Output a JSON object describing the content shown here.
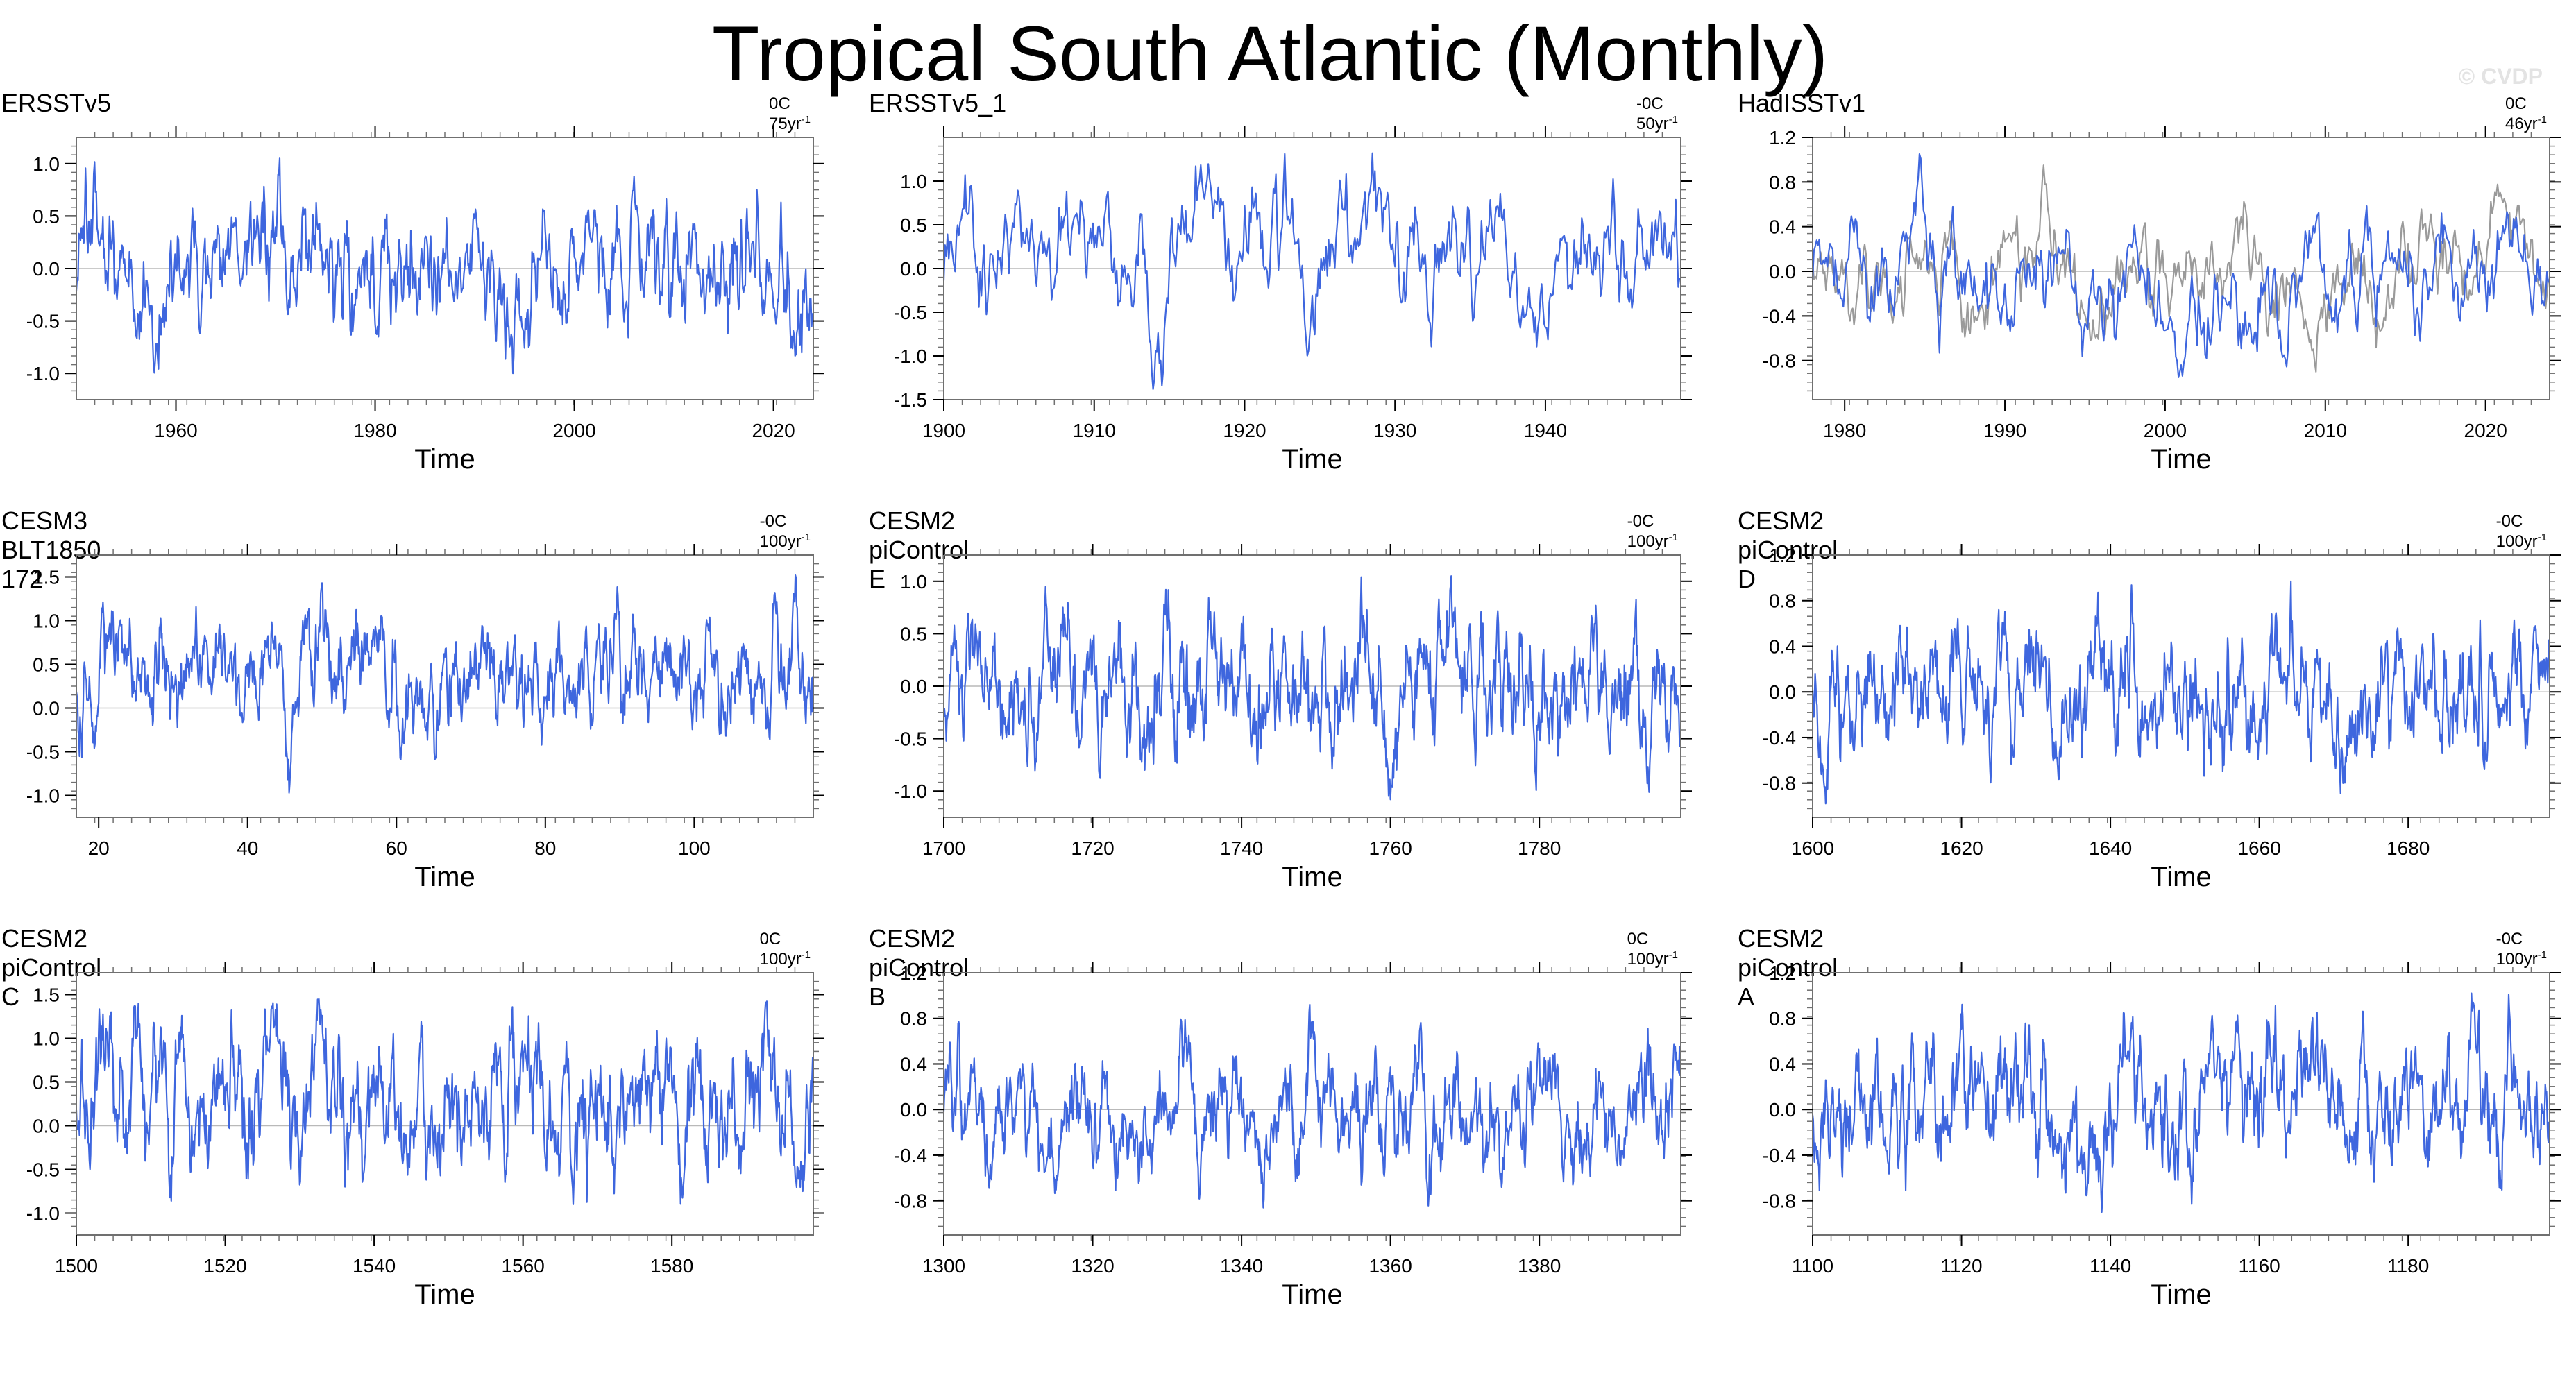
{
  "title": "Tropical South Atlantic (Monthly)",
  "watermark": "© CVDP",
  "colors": {
    "line": "#3e66de",
    "line_secondary": "#9a9a9a",
    "zero": "#b9b9b9",
    "frame": "#707070"
  },
  "chart_data": [
    {
      "type": "line",
      "title": "ERSSTv5",
      "trend_prefix": "0C 75yr",
      "trend_exp": "-1",
      "xlabel": "Time",
      "xlim": [
        1950,
        2024
      ],
      "ylim": [
        -1.25,
        1.25
      ],
      "xticks": [
        1960,
        1980,
        2000,
        2020
      ],
      "xtick_labels": [
        "1960",
        "1980",
        "2000",
        "2020"
      ],
      "yticks": [
        -1.0,
        -0.5,
        0.0,
        0.5,
        1.0
      ],
      "ytick_labels": [
        "-1.0",
        "-0.5",
        "0.0",
        "0.5",
        "1.0"
      ],
      "series": [
        {
          "name": "ERSSTv5",
          "seed": 11,
          "amplitude": 0.42,
          "y_min": -1.0,
          "y_max": 1.05
        }
      ]
    },
    {
      "type": "line",
      "title": "ERSSTv5_1",
      "trend_prefix": "-0C 50yr",
      "trend_exp": "-1",
      "xlabel": "Time",
      "xlim": [
        1900,
        1949
      ],
      "ylim": [
        -1.5,
        1.5
      ],
      "xticks": [
        1900,
        1910,
        1920,
        1930,
        1940
      ],
      "xtick_labels": [
        "1900",
        "1910",
        "1920",
        "1930",
        "1940"
      ],
      "yticks": [
        -1.5,
        -1.0,
        -0.5,
        0.0,
        0.5,
        1.0
      ],
      "ytick_labels": [
        "-1.5",
        "-1.0",
        "-0.5",
        "0.0",
        "0.5",
        "1.0"
      ],
      "series": [
        {
          "name": "ERSSTv5_1",
          "seed": 23,
          "amplitude": 0.48,
          "y_min": -1.38,
          "y_max": 1.32
        }
      ]
    },
    {
      "type": "line",
      "title": "HadISSTv1",
      "trend_prefix": "0C 46yr",
      "trend_exp": "-1",
      "xlabel": "Time",
      "xlim": [
        1978,
        2024
      ],
      "ylim": [
        -1.15,
        1.2
      ],
      "xticks": [
        1980,
        1990,
        2000,
        2010,
        2020
      ],
      "xtick_labels": [
        "1980",
        "1990",
        "2000",
        "2010",
        "2020"
      ],
      "yticks": [
        -0.8,
        -0.4,
        0.0,
        0.4,
        0.8,
        1.2
      ],
      "ytick_labels": [
        "-0.8",
        "-0.4",
        "0.0",
        "0.4",
        "0.8",
        "1.2"
      ],
      "series": [
        {
          "name": "HadISSTv1",
          "seed": 37,
          "amplitude": 0.38,
          "y_min": -0.95,
          "y_max": 1.05
        },
        {
          "name": "reference",
          "seed": 38,
          "amplitude": 0.36,
          "y_min": -0.9,
          "y_max": 0.95
        }
      ]
    },
    {
      "type": "line",
      "title": "CESM3 BLT1850 172",
      "trend_prefix": "-0C 100yr",
      "trend_exp": "-1",
      "xlabel": "Time",
      "xlim": [
        17,
        116
      ],
      "ylim": [
        -1.25,
        1.75
      ],
      "xticks": [
        20,
        40,
        60,
        80,
        100
      ],
      "xtick_labels": [
        "20",
        "40",
        "60",
        "80",
        "100"
      ],
      "yticks": [
        -1.0,
        -0.5,
        0.0,
        0.5,
        1.0,
        1.5
      ],
      "ytick_labels": [
        "-1.0",
        "-0.5",
        "0.0",
        "0.5",
        "1.0",
        "1.5"
      ],
      "series": [
        {
          "name": "CESM3 BLT1850 172",
          "seed": 51,
          "amplitude": 0.4,
          "y_min": -0.97,
          "y_max": 1.52
        }
      ]
    },
    {
      "type": "line",
      "title": "CESM2 piControl E",
      "trend_prefix": "-0C 100yr",
      "trend_exp": "-1",
      "xlabel": "Time",
      "xlim": [
        1700,
        1799
      ],
      "ylim": [
        -1.25,
        1.25
      ],
      "xticks": [
        1700,
        1720,
        1740,
        1760,
        1780
      ],
      "xtick_labels": [
        "1700",
        "1720",
        "1740",
        "1760",
        "1780"
      ],
      "yticks": [
        -1.0,
        -0.5,
        0.0,
        0.5,
        1.0
      ],
      "ytick_labels": [
        "-1.0",
        "-0.5",
        "0.0",
        "0.5",
        "1.0"
      ],
      "series": [
        {
          "name": "CESM2 piControl E",
          "seed": 67,
          "amplitude": 0.42,
          "y_min": -1.08,
          "y_max": 1.05
        }
      ]
    },
    {
      "type": "line",
      "title": "CESM2 piControl D",
      "trend_prefix": "-0C 100yr",
      "trend_exp": "-1",
      "xlabel": "Time",
      "xlim": [
        1600,
        1699
      ],
      "ylim": [
        -1.1,
        1.2
      ],
      "xticks": [
        1600,
        1620,
        1640,
        1660,
        1680
      ],
      "xtick_labels": [
        "1600",
        "1620",
        "1640",
        "1660",
        "1680"
      ],
      "yticks": [
        -0.8,
        -0.4,
        0.0,
        0.4,
        0.8,
        1.2
      ],
      "ytick_labels": [
        "-0.8",
        "-0.4",
        "0.0",
        "0.4",
        "0.8",
        "1.2"
      ],
      "series": [
        {
          "name": "CESM2 piControl D",
          "seed": 79,
          "amplitude": 0.35,
          "y_min": -0.98,
          "y_max": 0.97
        }
      ]
    },
    {
      "type": "line",
      "title": "CESM2 piControl C",
      "trend_prefix": "0C 100yr",
      "trend_exp": "-1",
      "xlabel": "Time",
      "xlim": [
        1500,
        1599
      ],
      "ylim": [
        -1.25,
        1.75
      ],
      "xticks": [
        1500,
        1520,
        1540,
        1560,
        1580
      ],
      "xtick_labels": [
        "1500",
        "1520",
        "1540",
        "1560",
        "1580"
      ],
      "yticks": [
        -1.0,
        -0.5,
        0.0,
        0.5,
        1.0,
        1.5
      ],
      "ytick_labels": [
        "-1.0",
        "-0.5",
        "0.0",
        "0.5",
        "1.0",
        "1.5"
      ],
      "series": [
        {
          "name": "CESM2 piControl C",
          "seed": 83,
          "amplitude": 0.42,
          "y_min": -0.9,
          "y_max": 1.45
        }
      ]
    },
    {
      "type": "line",
      "title": "CESM2 piControl B",
      "trend_prefix": "0C 100yr",
      "trend_exp": "-1",
      "xlabel": "Time",
      "xlim": [
        1300,
        1399
      ],
      "ylim": [
        -1.1,
        1.2
      ],
      "xticks": [
        1300,
        1320,
        1340,
        1360,
        1380
      ],
      "xtick_labels": [
        "1300",
        "1320",
        "1340",
        "1360",
        "1380"
      ],
      "yticks": [
        -0.8,
        -0.4,
        0.0,
        0.4,
        0.8,
        1.2
      ],
      "ytick_labels": [
        "-0.8",
        "-0.4",
        "0.0",
        "0.4",
        "0.8",
        "1.2"
      ],
      "series": [
        {
          "name": "CESM2 piControl B",
          "seed": 97,
          "amplitude": 0.32,
          "y_min": -0.86,
          "y_max": 0.92
        }
      ]
    },
    {
      "type": "line",
      "title": "CESM2 piControl A",
      "trend_prefix": "-0C 100yr",
      "trend_exp": "-1",
      "xlabel": "Time",
      "xlim": [
        1100,
        1199
      ],
      "ylim": [
        -1.1,
        1.2
      ],
      "xticks": [
        1100,
        1120,
        1140,
        1160,
        1180
      ],
      "xtick_labels": [
        "1100",
        "1120",
        "1140",
        "1160",
        "1180"
      ],
      "yticks": [
        -0.8,
        -0.4,
        0.0,
        0.4,
        0.8,
        1.2
      ],
      "ytick_labels": [
        "-0.8",
        "-0.4",
        "0.0",
        "0.4",
        "0.8",
        "1.2"
      ],
      "series": [
        {
          "name": "CESM2 piControl A",
          "seed": 103,
          "amplitude": 0.33,
          "y_min": -0.9,
          "y_max": 1.02
        }
      ]
    }
  ]
}
